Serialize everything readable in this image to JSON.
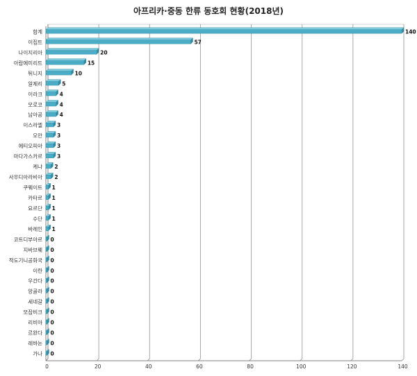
{
  "chart_data": {
    "type": "bar",
    "orientation": "horizontal",
    "title": "아프리카·중동 한류 동호회 현황(2018년)",
    "categories": [
      "합계",
      "이집트",
      "나이지리아",
      "아랍에미리트",
      "튀니지",
      "알제리",
      "이라크",
      "모로코",
      "남아공",
      "이스라엘",
      "오만",
      "에티오피아",
      "마다가스카르",
      "케냐",
      "사우디아라비아",
      "쿠웨이트",
      "카타르",
      "요르단",
      "수단",
      "바레인",
      "코트디부아르",
      "지바브웨",
      "적도기니공화국",
      "이란",
      "우간다",
      "앙골라",
      "세네갈",
      "모잠비크",
      "리비아",
      "르완다",
      "레바논",
      "가나"
    ],
    "values": [
      140,
      57,
      20,
      15,
      10,
      5,
      4,
      4,
      4,
      3,
      3,
      3,
      3,
      2,
      2,
      1,
      1,
      1,
      1,
      1,
      0,
      0,
      0,
      0,
      0,
      0,
      0,
      0,
      0,
      0,
      0,
      0
    ],
    "xlim": [
      0,
      140
    ],
    "xticks": [
      0,
      20,
      40,
      60,
      80,
      100,
      120,
      140
    ],
    "grid": true,
    "legend": "none",
    "colors": {
      "bar": "#4bacc6",
      "bar_dark": "#2e8aa3",
      "bar_light": "#7cc9dc",
      "grid": "#a6a6a6",
      "axis": "#808080"
    }
  }
}
